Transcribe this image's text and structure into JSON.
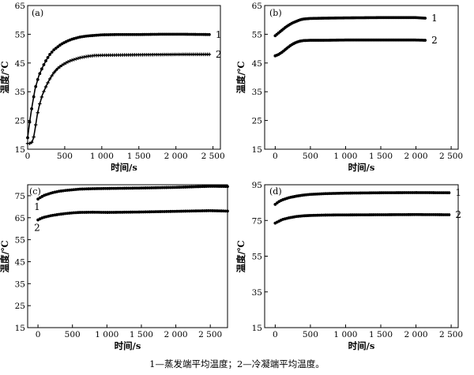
{
  "caption": "1—蒸发端平均温度；2—冷凝端平均温度。",
  "chart_data": [
    {
      "id": "a",
      "type": "line",
      "panel_label": "(a)",
      "xlabel": "时间/s",
      "ylabel": "温度/℃",
      "xlim": [
        0,
        2600
      ],
      "ylim": [
        15,
        65
      ],
      "xticks": [
        0,
        500,
        1000,
        1500,
        2000,
        2500
      ],
      "xtick_labels": [
        "0",
        "500",
        "1 000",
        "1 500",
        "2 000",
        "2 500"
      ],
      "yticks": [
        15,
        25,
        35,
        45,
        55,
        65
      ],
      "ytick_labels": [
        "15",
        "25",
        "35",
        "45",
        "55",
        "65"
      ],
      "series": [
        {
          "name": "1",
          "marker": "circle",
          "x": [
            0,
            30,
            60,
            100,
            150,
            200,
            250,
            300,
            350,
            400,
            450,
            500,
            550,
            600,
            700,
            800,
            900,
            1000,
            1200,
            1500,
            1800,
            2100,
            2450
          ],
          "y": [
            19,
            25,
            30,
            36,
            40.5,
            43.5,
            46,
            48,
            49.5,
            50.5,
            51.5,
            52.2,
            52.8,
            53.3,
            54,
            54.4,
            54.6,
            54.8,
            54.9,
            54.9,
            55,
            55,
            54.9
          ]
        },
        {
          "name": "2",
          "marker": "plus",
          "x": [
            0,
            30,
            60,
            80,
            100,
            130,
            160,
            200,
            250,
            300,
            350,
            400,
            450,
            500,
            550,
            600,
            700,
            800,
            900,
            1000,
            1300,
            1700,
            2100,
            2450
          ],
          "y": [
            17,
            17,
            17.5,
            19,
            22,
            27,
            30.5,
            34,
            37,
            39.5,
            41.5,
            43,
            44,
            44.8,
            45.5,
            46,
            46.8,
            47.3,
            47.6,
            47.7,
            47.8,
            47.9,
            48,
            48
          ]
        }
      ]
    },
    {
      "id": "b",
      "type": "line",
      "panel_label": "(b)",
      "xlabel": "时间/s",
      "ylabel": "温度/℃",
      "xlim": [
        -150,
        2600
      ],
      "ylim": [
        15,
        65
      ],
      "xticks": [
        0,
        500,
        1000,
        1500,
        2000,
        2500
      ],
      "xtick_labels": [
        "0",
        "500",
        "1 000",
        "1 500",
        "2 000",
        "2 500"
      ],
      "yticks": [
        15,
        25,
        35,
        45,
        55,
        65
      ],
      "ytick_labels": [
        "15",
        "25",
        "35",
        "45",
        "55",
        "65"
      ],
      "series": [
        {
          "name": "1",
          "marker": "circle",
          "x": [
            0,
            50,
            100,
            150,
            200,
            250,
            300,
            350,
            400,
            500,
            700,
            1000,
            1500,
            2000,
            2130
          ],
          "y": [
            54.5,
            55.5,
            56.5,
            57.5,
            58.3,
            59,
            59.5,
            60,
            60.3,
            60.5,
            60.6,
            60.7,
            60.8,
            60.8,
            60.6
          ]
        },
        {
          "name": "2",
          "marker": "circle",
          "x": [
            0,
            50,
            100,
            150,
            200,
            250,
            300,
            350,
            400,
            500,
            700,
            1000,
            1500,
            2000,
            2130
          ],
          "y": [
            47.5,
            48,
            48.8,
            49.8,
            50.8,
            51.6,
            52.2,
            52.6,
            52.8,
            52.9,
            52.9,
            53,
            53,
            53,
            52.9
          ]
        }
      ]
    },
    {
      "id": "c",
      "type": "line",
      "panel_label": "(c)",
      "xlabel": "时间/s",
      "ylabel": "温度/℃",
      "xlim": [
        -150,
        2750
      ],
      "ylim": [
        15,
        80
      ],
      "xticks": [
        0,
        500,
        1000,
        1500,
        2000,
        2500
      ],
      "xtick_labels": [
        "0",
        "500",
        "1 000",
        "1 500",
        "2 000",
        "2 500"
      ],
      "yticks": [
        15,
        25,
        35,
        45,
        55,
        65,
        75
      ],
      "ytick_labels": [
        "15",
        "25",
        "35",
        "45",
        "55",
        "65",
        "75"
      ],
      "series": [
        {
          "name": "1",
          "marker": "circle",
          "x": [
            0,
            50,
            100,
            200,
            300,
            400,
            500,
            600,
            800,
            1000,
            1500,
            2000,
            2500,
            2750
          ],
          "y": [
            73.5,
            74.5,
            75.3,
            76.3,
            77,
            77.4,
            77.7,
            78,
            78.2,
            78.3,
            78.5,
            78.8,
            79.3,
            79.2
          ]
        },
        {
          "name": "2",
          "marker": "circle",
          "x": [
            0,
            50,
            100,
            200,
            300,
            400,
            500,
            600,
            800,
            1000,
            1500,
            2000,
            2500,
            2750
          ],
          "y": [
            64,
            64.8,
            65.3,
            66,
            66.5,
            66.9,
            67.2,
            67.4,
            67.5,
            67.4,
            67.6,
            67.9,
            68.2,
            68
          ]
        }
      ]
    },
    {
      "id": "d",
      "type": "line",
      "panel_label": "(d)",
      "xlabel": "时间/s",
      "ylabel": "温度/℃",
      "xlim": [
        -150,
        2600
      ],
      "ylim": [
        15,
        95
      ],
      "xticks": [
        0,
        500,
        1000,
        1500,
        2000,
        2500
      ],
      "xtick_labels": [
        "0",
        "500",
        "1 000",
        "1 500",
        "2 000",
        "2 500"
      ],
      "yticks": [
        15,
        35,
        55,
        75,
        95
      ],
      "ytick_labels": [
        "15",
        "35",
        "55",
        "75",
        "95"
      ],
      "series": [
        {
          "name": "1",
          "marker": "circle",
          "x": [
            0,
            50,
            100,
            200,
            300,
            400,
            500,
            700,
            900,
            1000,
            1500,
            2000,
            2470
          ],
          "y": [
            84,
            85.5,
            86.5,
            87.8,
            88.6,
            89.2,
            89.6,
            90,
            90.2,
            90.3,
            90.5,
            90.6,
            90.5
          ]
        },
        {
          "name": "2",
          "marker": "circle",
          "x": [
            0,
            50,
            100,
            200,
            300,
            400,
            500,
            700,
            900,
            1000,
            1500,
            2000,
            2470
          ],
          "y": [
            73.5,
            74.5,
            75.5,
            76.5,
            77.2,
            77.6,
            77.8,
            78,
            78.1,
            78.1,
            78.2,
            78.3,
            78.2
          ]
        }
      ]
    }
  ]
}
